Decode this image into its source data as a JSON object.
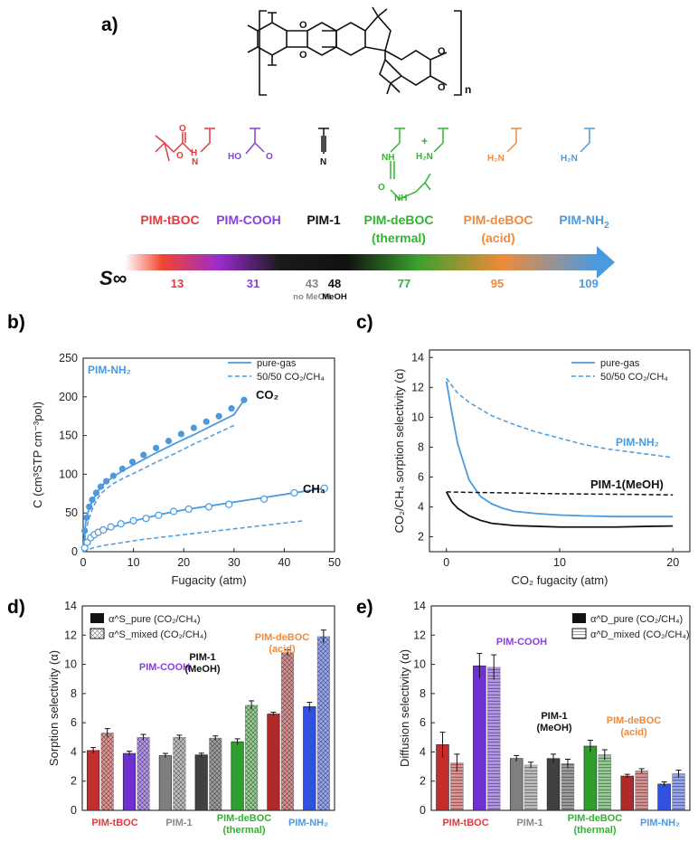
{
  "panels": {
    "a": "a)",
    "b": "b)",
    "c": "c)",
    "d": "d)",
    "e": "e)"
  },
  "structure": {
    "repeat_label": "n"
  },
  "series_labels": [
    {
      "name": "PIM-tBOC",
      "color": "#e5383b",
      "func": "tBOC"
    },
    {
      "name": "PIM-COOH",
      "color": "#8a3ee0",
      "func": "COOH"
    },
    {
      "name": "PIM-1",
      "color": "#111111",
      "func": "CN"
    },
    {
      "name": "PIM-deBOC",
      "line2": "(thermal)",
      "color": "#2fb52f",
      "func": "thermal"
    },
    {
      "name": "PIM-deBOC",
      "line2": "(acid)",
      "color": "#f08a3a",
      "func": "acid"
    },
    {
      "name": "PIM-NH",
      "sub": "2",
      "color": "#4a9ae0",
      "func": "NH2"
    }
  ],
  "s_scale": {
    "symbol": "S∞",
    "values": [
      {
        "v": "13",
        "color": "#e5383b"
      },
      {
        "v": "31",
        "color": "#8a3ee0"
      },
      {
        "v": "43",
        "color": "#888888",
        "note": "no MeOH"
      },
      {
        "v": "48",
        "color": "#111111",
        "note": "MeOH"
      },
      {
        "v": "77",
        "color": "#2fb52f"
      },
      {
        "v": "95",
        "color": "#f08a3a"
      },
      {
        "v": "109",
        "color": "#4a9ae0"
      }
    ]
  },
  "chart_data": [
    {
      "id": "b",
      "type": "scatter",
      "xlabel": "Fugacity (atm)",
      "ylabel": "C (cm³STP cm⁻³pol)",
      "xlim": [
        0,
        50
      ],
      "ylim": [
        0,
        250
      ],
      "xticks": [
        0,
        10,
        20,
        30,
        40,
        50
      ],
      "yticks": [
        0,
        50,
        100,
        150,
        200,
        250
      ],
      "inset_label": "PIM-NH₂",
      "legend": [
        "pure-gas",
        "50/50 CO₂/CH₄"
      ],
      "gas_labels": {
        "co2": "CO₂",
        "ch4": "CH₄"
      },
      "series": [
        {
          "name": "CO2 pure-gas data",
          "x": [
            0.3,
            0.7,
            1.2,
            1.8,
            2.6,
            3.5,
            4.6,
            6,
            7.8,
            9.8,
            12,
            14.5,
            17,
            19.5,
            22,
            24.5,
            27,
            29.5,
            32
          ],
          "y": [
            27,
            44,
            58,
            67,
            76,
            84,
            91,
            98,
            107,
            116,
            125,
            134,
            143,
            152,
            160,
            168,
            175,
            185,
            196
          ]
        },
        {
          "name": "CO2 pure-gas fit",
          "x": [
            0,
            0.5,
            1,
            2,
            3,
            4,
            6,
            8,
            10,
            14,
            18,
            22,
            26,
            30,
            32
          ],
          "y": [
            0,
            38,
            52,
            68,
            79,
            87,
            97,
            105,
            112,
            126,
            139,
            151,
            164,
            177,
            196
          ]
        },
        {
          "name": "CO2 50/50 mixed",
          "x": [
            0.3,
            1,
            2,
            3,
            4,
            6,
            8,
            10,
            14,
            18,
            22,
            26,
            30
          ],
          "y": [
            15,
            40,
            58,
            70,
            78,
            88,
            95,
            101,
            114,
            126,
            139,
            151,
            163
          ]
        },
        {
          "name": "CH4 pure-gas data",
          "x": [
            0.3,
            0.8,
            1.5,
            2.2,
            3,
            4,
            5.5,
            7.5,
            10,
            12.5,
            15,
            18,
            21,
            25,
            29,
            36,
            42,
            48
          ],
          "y": [
            5,
            12,
            18,
            22,
            25,
            28,
            32,
            36,
            40,
            43,
            47,
            52,
            55,
            58,
            61,
            68,
            76,
            82
          ]
        },
        {
          "name": "CH4 pure-gas fit",
          "x": [
            0,
            1,
            2,
            4,
            6,
            8,
            12,
            16,
            20,
            28,
            36,
            42,
            48
          ],
          "y": [
            0,
            14,
            20,
            27,
            32,
            36,
            43,
            49,
            54,
            62,
            70,
            76,
            82
          ]
        },
        {
          "name": "CH4 50/50 mixed",
          "x": [
            0,
            2,
            4,
            8,
            12,
            16,
            20,
            24,
            28,
            32,
            36,
            40,
            44
          ],
          "y": [
            0,
            5,
            8,
            12,
            16,
            19,
            22,
            25,
            28,
            31,
            34,
            37,
            40
          ]
        }
      ]
    },
    {
      "id": "c",
      "type": "line",
      "xlabel": "CO₂ fugacity (atm)",
      "ylabel": "CO₂/CH₄ sorption selectivity (α)",
      "xlim": [
        -1.5,
        21.5
      ],
      "ylim": [
        1,
        14.5
      ],
      "xticks": [
        0,
        10,
        20
      ],
      "yticks": [
        2,
        4,
        6,
        8,
        10,
        12,
        14
      ],
      "legend": [
        "pure-gas",
        "50/50 CO₂/CH₄"
      ],
      "curve_labels": [
        "PIM-NH₂",
        "PIM-1(MeOH)"
      ],
      "series": [
        {
          "name": "PIM-NH2 pure-gas",
          "x": [
            0,
            0.5,
            1,
            2,
            3,
            4,
            5,
            6,
            8,
            10,
            12,
            15,
            18,
            20
          ],
          "y": [
            12.4,
            10.2,
            8.2,
            5.8,
            4.7,
            4.2,
            3.9,
            3.7,
            3.55,
            3.45,
            3.4,
            3.35,
            3.35,
            3.35
          ]
        },
        {
          "name": "PIM-NH2 50/50",
          "x": [
            0,
            1,
            2,
            4,
            6,
            8,
            10,
            12,
            14,
            16,
            18,
            20
          ],
          "y": [
            12.6,
            11.6,
            11,
            10.1,
            9.5,
            9,
            8.6,
            8.2,
            7.9,
            7.7,
            7.5,
            7.3
          ]
        },
        {
          "name": "PIM-1(MeOH) pure-gas",
          "x": [
            0,
            0.5,
            1,
            2,
            3,
            4,
            6,
            8,
            10,
            12,
            15,
            18,
            20
          ],
          "y": [
            5,
            4.3,
            3.9,
            3.4,
            3.1,
            2.9,
            2.75,
            2.7,
            2.65,
            2.65,
            2.65,
            2.7,
            2.72
          ]
        },
        {
          "name": "PIM-1(MeOH) 50/50",
          "x": [
            0,
            2,
            4,
            6,
            8,
            10,
            12,
            14,
            16,
            18,
            20
          ],
          "y": [
            5,
            4.97,
            4.95,
            4.93,
            4.9,
            4.88,
            4.86,
            4.85,
            4.84,
            4.82,
            4.8
          ]
        }
      ]
    },
    {
      "id": "d",
      "type": "bar",
      "ylabel": "Sorption selectivity (α)",
      "ylim": [
        0,
        14
      ],
      "yticks": [
        0,
        2,
        4,
        6,
        8,
        10,
        12,
        14
      ],
      "legend": [
        "α^S_pure (CO₂/CH₄)",
        "α^S_mixed (CO₂/CH₄)"
      ],
      "categories": [
        "PIM-tBOC",
        "PIM-COOH",
        "PIM-1",
        "PIM-1 (MeOH)",
        "PIM-deBOC (thermal)",
        "PIM-deBOC (acid)",
        "PIM-NH₂"
      ],
      "series": [
        {
          "name": "pure",
          "values": [
            4.1,
            3.9,
            3.75,
            3.8,
            4.7,
            6.6,
            7.1
          ],
          "errors": [
            0.2,
            0.15,
            0.15,
            0.12,
            0.2,
            0.12,
            0.3
          ]
        },
        {
          "name": "mixed",
          "values": [
            5.3,
            5.0,
            5.0,
            4.95,
            7.2,
            10.8,
            11.9
          ],
          "errors": [
            0.3,
            0.2,
            0.15,
            0.15,
            0.3,
            0.2,
            0.45
          ]
        }
      ],
      "category_labels": [
        "PIM-tBOC",
        "PIM-1",
        "PIM-deBOC",
        "(thermal)",
        "PIM-NH₂"
      ],
      "annotations": [
        "PIM-COOH",
        "PIM-1",
        "(MeOH)",
        "PIM-deBOC",
        "(acid)"
      ]
    },
    {
      "id": "e",
      "type": "bar",
      "ylabel": "Diffusion selectivity (α)",
      "ylim": [
        0,
        14
      ],
      "yticks": [
        0,
        2,
        4,
        6,
        8,
        10,
        12,
        14
      ],
      "legend": [
        "α^D_pure (CO₂/CH₄)",
        "α^D_mixed (CO₂/CH₄)"
      ],
      "categories": [
        "PIM-tBOC",
        "PIM-COOH",
        "PIM-1",
        "PIM-1 (MeOH)",
        "PIM-deBOC (thermal)",
        "PIM-deBOC (acid)",
        "PIM-NH₂"
      ],
      "series": [
        {
          "name": "pure",
          "values": [
            4.5,
            9.9,
            3.55,
            3.55,
            4.4,
            2.35,
            1.8
          ],
          "errors": [
            0.85,
            0.85,
            0.2,
            0.3,
            0.4,
            0.12,
            0.15
          ]
        },
        {
          "name": "mixed",
          "values": [
            3.25,
            9.8,
            3.1,
            3.2,
            3.8,
            2.7,
            2.5
          ],
          "errors": [
            0.6,
            0.85,
            0.2,
            0.3,
            0.35,
            0.15,
            0.25
          ]
        }
      ],
      "category_labels": [
        "PIM-tBOC",
        "PIM-1",
        "PIM-deBOC",
        "(thermal)",
        "PIM-NH₂"
      ],
      "annotations": [
        "PIM-COOH",
        "PIM-1",
        "(MeOH)",
        "PIM-deBOC",
        "(acid)"
      ]
    }
  ],
  "colors": {
    "tboc": "#e5383b",
    "cooh": "#8a3ee0",
    "pim1": "#111111",
    "pim1gray": "#888888",
    "thermal": "#2fb52f",
    "acid": "#f08a3a",
    "nh2": "#4a9ae0",
    "bar_tboc": "#c32d2d",
    "bar_cooh": "#7030d0",
    "bar_pim1": "#7f7f7f",
    "bar_meoh": "#404040",
    "bar_thermal": "#2e9e2e",
    "bar_acid": "#b02a2a",
    "bar_nh2": "#3050e0"
  }
}
